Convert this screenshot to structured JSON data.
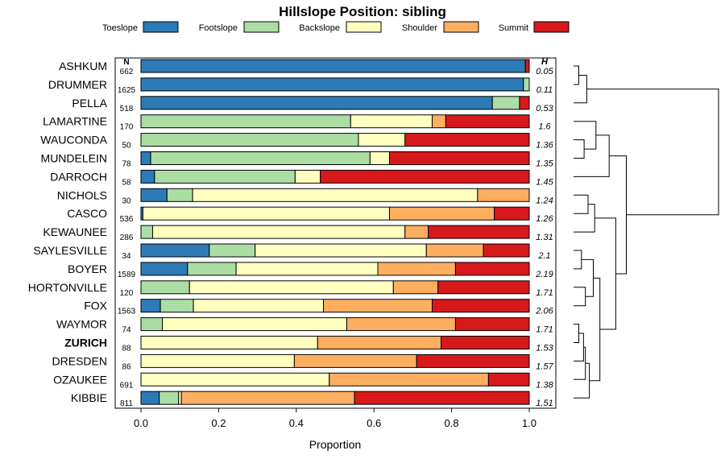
{
  "chart_data": {
    "type": "bar",
    "orientation": "horizontal",
    "stacked": true,
    "title": "Hillslope Position: sibling",
    "xlabel": "Proportion",
    "ylabel": "",
    "xlim": [
      0,
      1
    ],
    "xticks": [
      "0.0",
      "0.2",
      "0.4",
      "0.6",
      "0.8",
      "1.0"
    ],
    "xtick_values": [
      0,
      0.2,
      0.4,
      0.6,
      0.8,
      1.0
    ],
    "legend_position": "top",
    "n_header": "N",
    "h_header": "H",
    "highlighted": "ZURICH",
    "series": [
      {
        "name": "Toeslope",
        "color": "#2c7bb6"
      },
      {
        "name": "Footslope",
        "color": "#abdda4"
      },
      {
        "name": "Backslope",
        "color": "#ffffbf"
      },
      {
        "name": "Shoulder",
        "color": "#fdae61"
      },
      {
        "name": "Summit",
        "color": "#d7191c"
      }
    ],
    "rows": [
      {
        "name": "ASHKUM",
        "n": "662",
        "h": "0.05",
        "values": [
          0.99,
          0.0,
          0.0,
          0.0,
          0.01
        ]
      },
      {
        "name": "DRUMMER",
        "n": "1625",
        "h": "0.11",
        "values": [
          0.985,
          0.015,
          0.0,
          0.0,
          0.0
        ]
      },
      {
        "name": "PELLA",
        "n": "518",
        "h": "0.53",
        "values": [
          0.905,
          0.07,
          0.0,
          0.0,
          0.025
        ]
      },
      {
        "name": "LAMARTINE",
        "n": "170",
        "h": "1.6",
        "values": [
          0.0,
          0.54,
          0.21,
          0.035,
          0.215
        ]
      },
      {
        "name": "WAUCONDA",
        "n": "50",
        "h": "1.36",
        "values": [
          0.0,
          0.56,
          0.12,
          0.0,
          0.32
        ]
      },
      {
        "name": "MUNDELEIN",
        "n": "78",
        "h": "1.35",
        "values": [
          0.025,
          0.565,
          0.05,
          0.0,
          0.36
        ]
      },
      {
        "name": "DARROCH",
        "n": "58",
        "h": "1.45",
        "values": [
          0.035,
          0.362,
          0.065,
          0.0,
          0.538
        ]
      },
      {
        "name": "NICHOLS",
        "n": "30",
        "h": "1.24",
        "values": [
          0.067,
          0.066,
          0.734,
          0.133,
          0.0
        ]
      },
      {
        "name": "CASCO",
        "n": "536",
        "h": "1.26",
        "values": [
          0.005,
          0.0,
          0.635,
          0.27,
          0.09
        ]
      },
      {
        "name": "KEWAUNEE",
        "n": "286",
        "h": "1.31",
        "values": [
          0.0,
          0.03,
          0.65,
          0.06,
          0.26
        ]
      },
      {
        "name": "SAYLESVILLE",
        "n": "34",
        "h": "2.1",
        "values": [
          0.176,
          0.118,
          0.441,
          0.147,
          0.118
        ]
      },
      {
        "name": "BOYER",
        "n": "1589",
        "h": "2.19",
        "values": [
          0.12,
          0.125,
          0.365,
          0.2,
          0.19
        ]
      },
      {
        "name": "HORTONVILLE",
        "n": "120",
        "h": "1.71",
        "values": [
          0.0,
          0.125,
          0.525,
          0.115,
          0.235
        ]
      },
      {
        "name": "FOX",
        "n": "1563",
        "h": "2.06",
        "values": [
          0.05,
          0.085,
          0.335,
          0.28,
          0.25
        ]
      },
      {
        "name": "WAYMOR",
        "n": "74",
        "h": "1.71",
        "values": [
          0.0,
          0.055,
          0.475,
          0.28,
          0.19
        ]
      },
      {
        "name": "ZURICH",
        "n": "88",
        "h": "1.53",
        "values": [
          0.0,
          0.0,
          0.455,
          0.318,
          0.227
        ]
      },
      {
        "name": "DRESDEN",
        "n": "86",
        "h": "1.57",
        "values": [
          0.0,
          0.0,
          0.395,
          0.315,
          0.29
        ]
      },
      {
        "name": "OZAUKEE",
        "n": "691",
        "h": "1.38",
        "values": [
          0.0,
          0.0,
          0.485,
          0.41,
          0.105
        ]
      },
      {
        "name": "KIBBIE",
        "n": "811",
        "h": "1.51",
        "values": [
          0.047,
          0.05,
          0.007,
          0.446,
          0.45
        ]
      }
    ],
    "dendrogram_merges": [
      [
        0,
        1,
        0.2
      ],
      [
        -1,
        2,
        0.5
      ],
      [
        4,
        5,
        0.4
      ],
      [
        3,
        -3,
        0.85
      ],
      [
        -4,
        6,
        1.35
      ],
      [
        7,
        8,
        0.55
      ],
      [
        -6,
        9,
        0.8
      ],
      [
        10,
        11,
        0.3
      ],
      [
        12,
        13,
        0.45
      ],
      [
        -8,
        -9,
        0.75
      ],
      [
        14,
        15,
        0.2
      ],
      [
        -11,
        16,
        0.38
      ],
      [
        -12,
        17,
        0.45
      ],
      [
        -13,
        18,
        0.6
      ],
      [
        -10,
        -14,
        1.0
      ],
      [
        -7,
        -15,
        1.6
      ],
      [
        -5,
        -16,
        2.0
      ],
      [
        -2,
        -17,
        5.5
      ]
    ]
  }
}
